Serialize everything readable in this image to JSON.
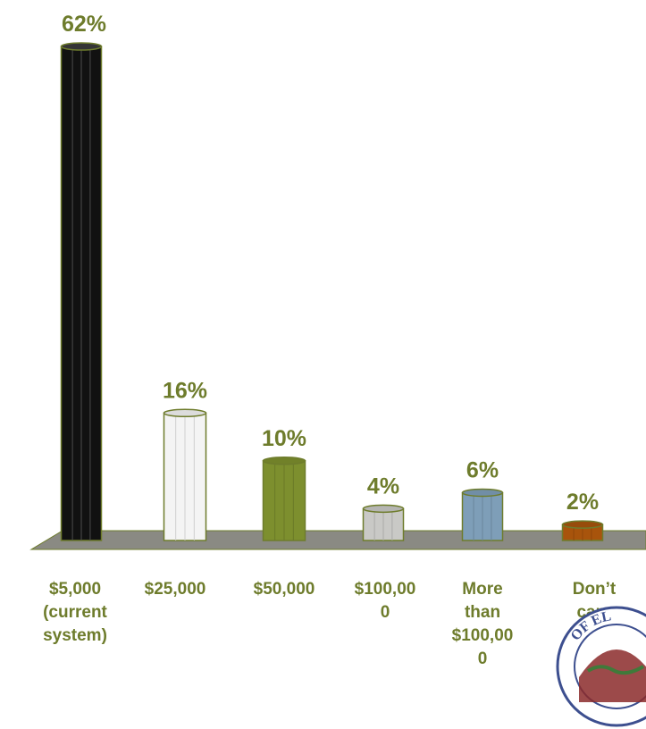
{
  "chart_data": {
    "type": "bar",
    "categories": [
      "$5,000 (current system)",
      "$25,000",
      "$50,000",
      "$100,000",
      "More than $100,000",
      "Don’t care"
    ],
    "label_lines": [
      [
        "$5,000",
        "(current",
        "system)"
      ],
      [
        "$25,000"
      ],
      [
        "$50,000"
      ],
      [
        "$100,00",
        "0"
      ],
      [
        "More",
        "than",
        "$100,00",
        "0"
      ],
      [
        "Don’t",
        "care"
      ]
    ],
    "values": [
      62,
      16,
      10,
      4,
      6,
      2
    ],
    "value_labels": [
      "62%",
      "16%",
      "10%",
      "4%",
      "6%",
      "2%"
    ],
    "ylim": [
      0,
      62
    ],
    "bar_colors": [
      "#111111",
      "#f4f4f4",
      "#7d8f2e",
      "#c9c9c6",
      "#7e9eb8",
      "#a8540c"
    ],
    "floor_color": "#8a8a83",
    "label_color": "#6e7c2c",
    "title": "",
    "xlabel": "",
    "ylabel": ""
  },
  "logo": {
    "text": "OF EL"
  }
}
